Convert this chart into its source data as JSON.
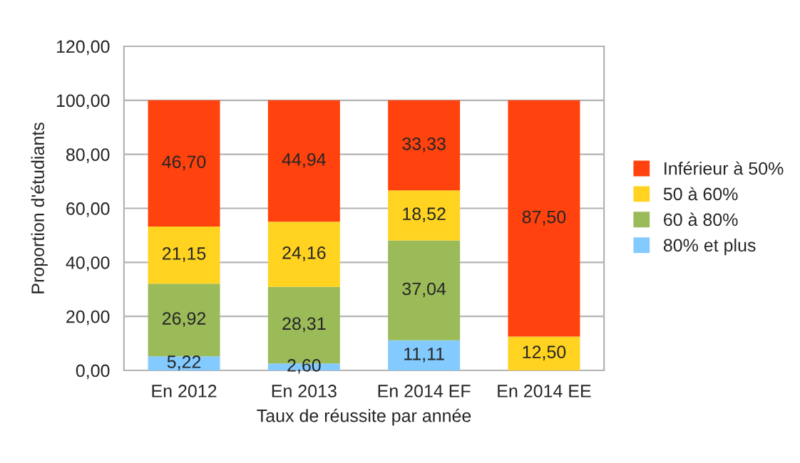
{
  "chart_data": {
    "type": "bar",
    "stacked": true,
    "xlabel": "Taux de réussite par année",
    "ylabel": "Proportion d'étudiants",
    "categories": [
      "En 2012",
      "En 2013",
      "En 2014 EF",
      "En 2014 EE"
    ],
    "series": [
      {
        "name": "80% et plus",
        "color": "#83caff",
        "values": [
          5.22,
          2.6,
          11.11,
          null
        ],
        "value_labels": [
          "5,22",
          "2,60",
          "11,11",
          null
        ]
      },
      {
        "name": "60 à 80%",
        "color": "#9bbb59",
        "values": [
          26.92,
          28.31,
          37.04,
          null
        ],
        "value_labels": [
          "26,92",
          "28,31",
          "37,04",
          null
        ]
      },
      {
        "name": "50 à 60%",
        "color": "#ffd320",
        "values": [
          21.15,
          24.16,
          18.52,
          12.5
        ],
        "value_labels": [
          "21,15",
          "24,16",
          "18,52",
          "12,50"
        ]
      },
      {
        "name": "Inférieur à 50%",
        "color": "#ff420e",
        "values": [
          46.7,
          44.94,
          33.33,
          87.5
        ],
        "value_labels": [
          "46,70",
          "44,94",
          "33,33",
          "87,50"
        ]
      }
    ],
    "ylim": [
      0,
      120
    ],
    "yticks": [
      {
        "value": 0,
        "label": "0,00"
      },
      {
        "value": 20,
        "label": "20,00"
      },
      {
        "value": 40,
        "label": "40,00"
      },
      {
        "value": 60,
        "label": "60,00"
      },
      {
        "value": 80,
        "label": "80,00"
      },
      {
        "value": 100,
        "label": "100,00"
      },
      {
        "value": 120,
        "label": "120,00"
      }
    ],
    "grid": "y",
    "legend": "right"
  }
}
